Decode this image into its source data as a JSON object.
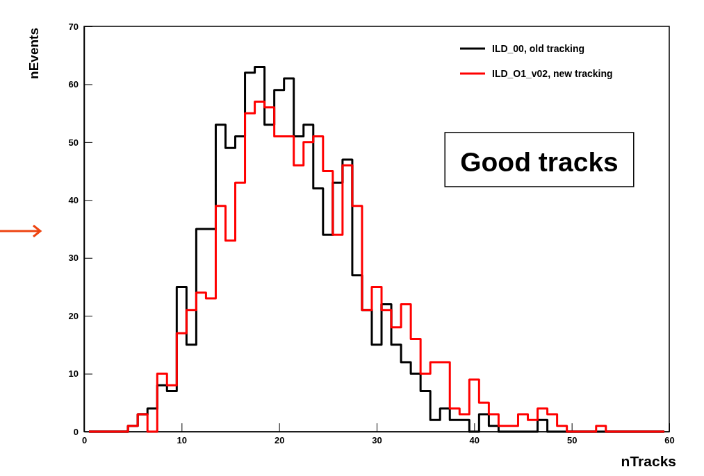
{
  "chart_data": {
    "type": "histogram",
    "xlabel": "nTracks",
    "ylabel": "nEvents",
    "bins": [
      0.5,
      1.5,
      2.5,
      3.5,
      4.5,
      5.5,
      6.5,
      7.5,
      8.5,
      9.5,
      10.5,
      11.5,
      12.5,
      13.5,
      14.5,
      15.5,
      16.5,
      17.5,
      18.5,
      19.5,
      20.5,
      21.5,
      22.5,
      23.5,
      24.5,
      25.5,
      26.5,
      27.5,
      28.5,
      29.5,
      30.5,
      31.5,
      32.5,
      33.5,
      34.5,
      35.5,
      36.5,
      37.5,
      38.5,
      39.5,
      40.5,
      41.5,
      42.5,
      43.5,
      44.5,
      45.5,
      46.5,
      47.5,
      48.5,
      49.5,
      50.5,
      51.5,
      52.5,
      53.5,
      54.5,
      55.5,
      56.5,
      57.5,
      58.5,
      59.5
    ],
    "series": [
      {
        "name": "ILD_00, old tracking",
        "color": "#000000",
        "values": [
          0,
          0,
          0,
          0,
          1,
          3,
          4,
          8,
          7,
          25,
          15,
          35,
          35,
          53,
          49,
          51,
          62,
          63,
          53,
          59,
          61,
          51,
          53,
          42,
          34,
          43,
          47,
          27,
          21,
          15,
          22,
          15,
          12,
          10,
          7,
          2,
          4,
          2,
          2,
          0,
          3,
          1,
          0,
          0,
          0,
          0,
          2,
          0,
          0,
          0,
          0,
          0,
          0,
          0,
          0,
          0,
          0,
          0,
          0
        ]
      },
      {
        "name": "ILD_O1_v02, new tracking",
        "color": "#ff0000",
        "values": [
          0,
          0,
          0,
          0,
          1,
          3,
          0,
          10,
          8,
          17,
          21,
          24,
          23,
          39,
          33,
          43,
          55,
          57,
          56,
          51,
          51,
          46,
          50,
          51,
          45,
          34,
          46,
          39,
          21,
          25,
          21,
          18,
          22,
          16,
          10,
          12,
          12,
          4,
          3,
          9,
          5,
          3,
          1,
          1,
          3,
          2,
          4,
          3,
          1,
          0,
          0,
          0,
          1,
          0,
          0,
          0,
          0,
          0,
          0
        ]
      }
    ],
    "xlim": [
      0,
      60
    ],
    "xticks": [
      0,
      10,
      20,
      30,
      40,
      50,
      60
    ],
    "ylim": [
      0,
      70
    ],
    "yticks": [
      0,
      10,
      20,
      30,
      40,
      50,
      60,
      70
    ],
    "legend": "top right",
    "line_style": "solid",
    "annotations": [
      "Good tracks"
    ]
  }
}
